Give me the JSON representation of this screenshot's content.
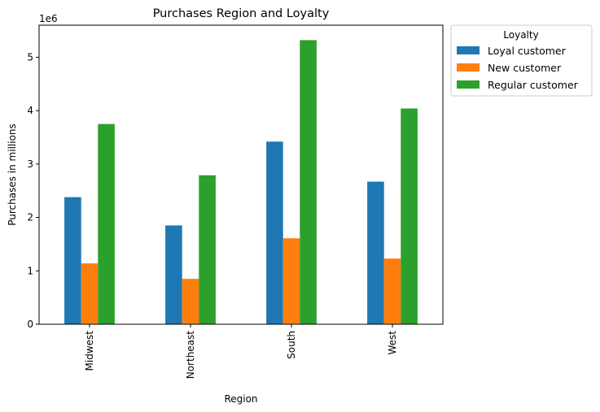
{
  "chart_data": {
    "type": "bar",
    "title": "Purchases Region and Loyalty",
    "xlabel": "Region",
    "ylabel": "Purchases in millions",
    "offset_label": "1e6",
    "categories": [
      "Midwest",
      "Northeast",
      "South",
      "West"
    ],
    "series": [
      {
        "name": "Loyal customer",
        "color": "#1f77b4",
        "values": [
          2380000,
          1850000,
          3420000,
          2670000
        ]
      },
      {
        "name": "New customer",
        "color": "#ff7f0e",
        "values": [
          1140000,
          850000,
          1610000,
          1230000
        ]
      },
      {
        "name": "Regular customer",
        "color": "#2ca02c",
        "values": [
          3750000,
          2790000,
          5320000,
          4040000
        ]
      }
    ],
    "yticks": [
      0,
      1,
      2,
      3,
      4,
      5
    ],
    "ylim": [
      0,
      5600000
    ],
    "grid": false,
    "legend": {
      "title": "Loyalty",
      "placement": "outside-top-right"
    }
  }
}
